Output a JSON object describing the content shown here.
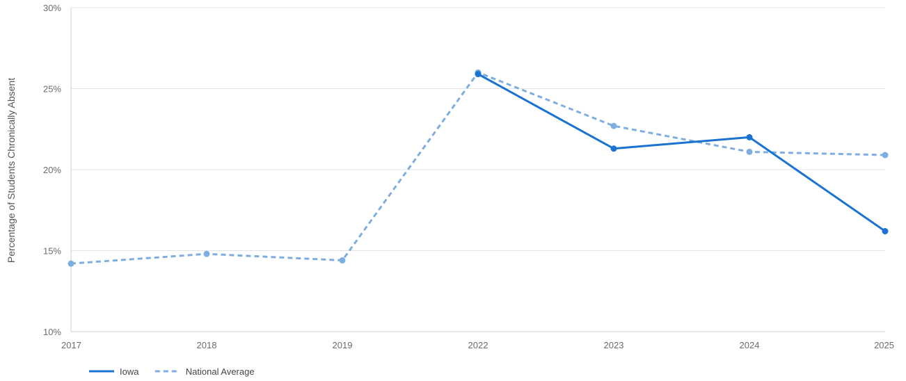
{
  "chart_data": {
    "type": "line",
    "title": "",
    "xlabel": "",
    "ylabel": "Percentage of Students Chronically Absent",
    "categories": [
      "2017",
      "2018",
      "2019",
      "2022",
      "2023",
      "2024",
      "2025"
    ],
    "ylim": [
      10,
      30
    ],
    "yticks": [
      10,
      15,
      20,
      25,
      30
    ],
    "ytick_labels": [
      "10%",
      "15%",
      "20%",
      "25%",
      "30%"
    ],
    "grid": true,
    "legend_position": "bottom-left",
    "series": [
      {
        "name": "Iowa",
        "style": "solid",
        "color": "#1a73d1",
        "values": [
          null,
          null,
          null,
          25.9,
          21.3,
          22.0,
          16.2
        ]
      },
      {
        "name": "National Average",
        "style": "dashed",
        "color": "#7eaedf",
        "values": [
          14.2,
          14.8,
          14.4,
          26.0,
          22.7,
          21.1,
          20.9
        ]
      }
    ]
  }
}
